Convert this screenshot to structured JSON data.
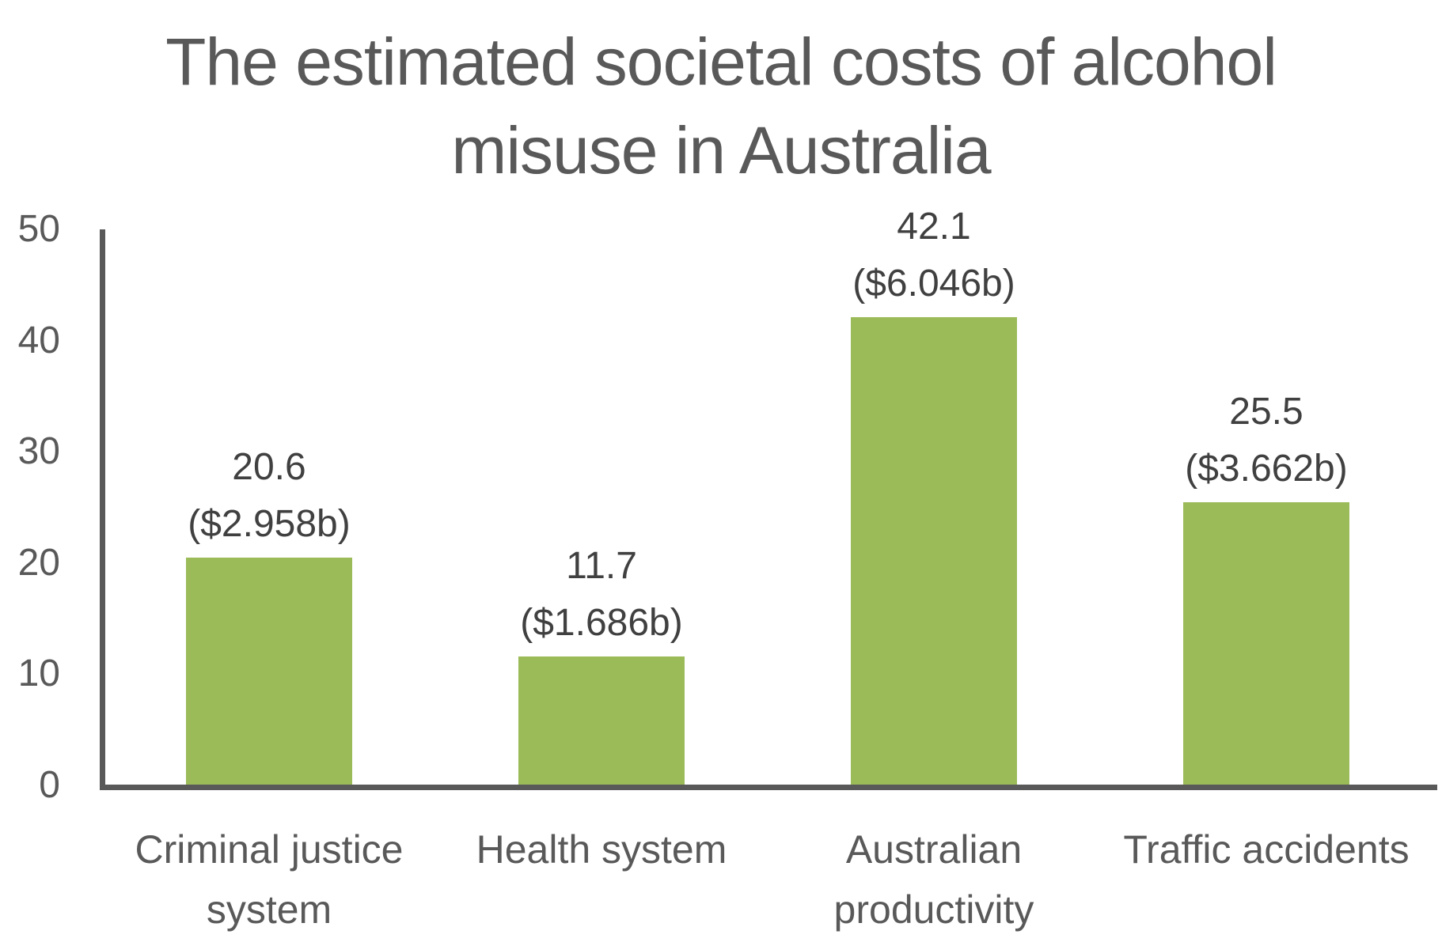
{
  "chart_data": {
    "type": "bar",
    "title": "The estimated societal costs of alcohol misuse in Australia",
    "title_lines": [
      "The estimated societal costs of alcohol",
      "misuse in Australia"
    ],
    "categories": [
      "Criminal justice system",
      "Health system",
      "Australian productivity",
      "Traffic accidents"
    ],
    "category_lines": [
      [
        "Criminal justice",
        "system"
      ],
      [
        "Health system"
      ],
      [
        "Australian",
        "productivity"
      ],
      [
        "Traffic accidents"
      ]
    ],
    "values": [
      20.6,
      11.7,
      42.1,
      25.5
    ],
    "data_labels": [
      {
        "value": "20.6",
        "cost": "($2.958b)"
      },
      {
        "value": "11.7",
        "cost": "($1.686b)"
      },
      {
        "value": "42.1",
        "cost": "($6.046b)"
      },
      {
        "value": "25.5",
        "cost": "($3.662b)"
      }
    ],
    "costs_billion_aud": [
      2.958,
      1.686,
      6.046,
      3.662
    ],
    "xlabel": "",
    "ylabel": "",
    "ylim": [
      0,
      50
    ],
    "yticks": [
      "0",
      "10",
      "20",
      "30",
      "40",
      "50"
    ],
    "grid": false,
    "legend": null,
    "bar_color": "#9bbb59",
    "axis_color": "#595959"
  }
}
